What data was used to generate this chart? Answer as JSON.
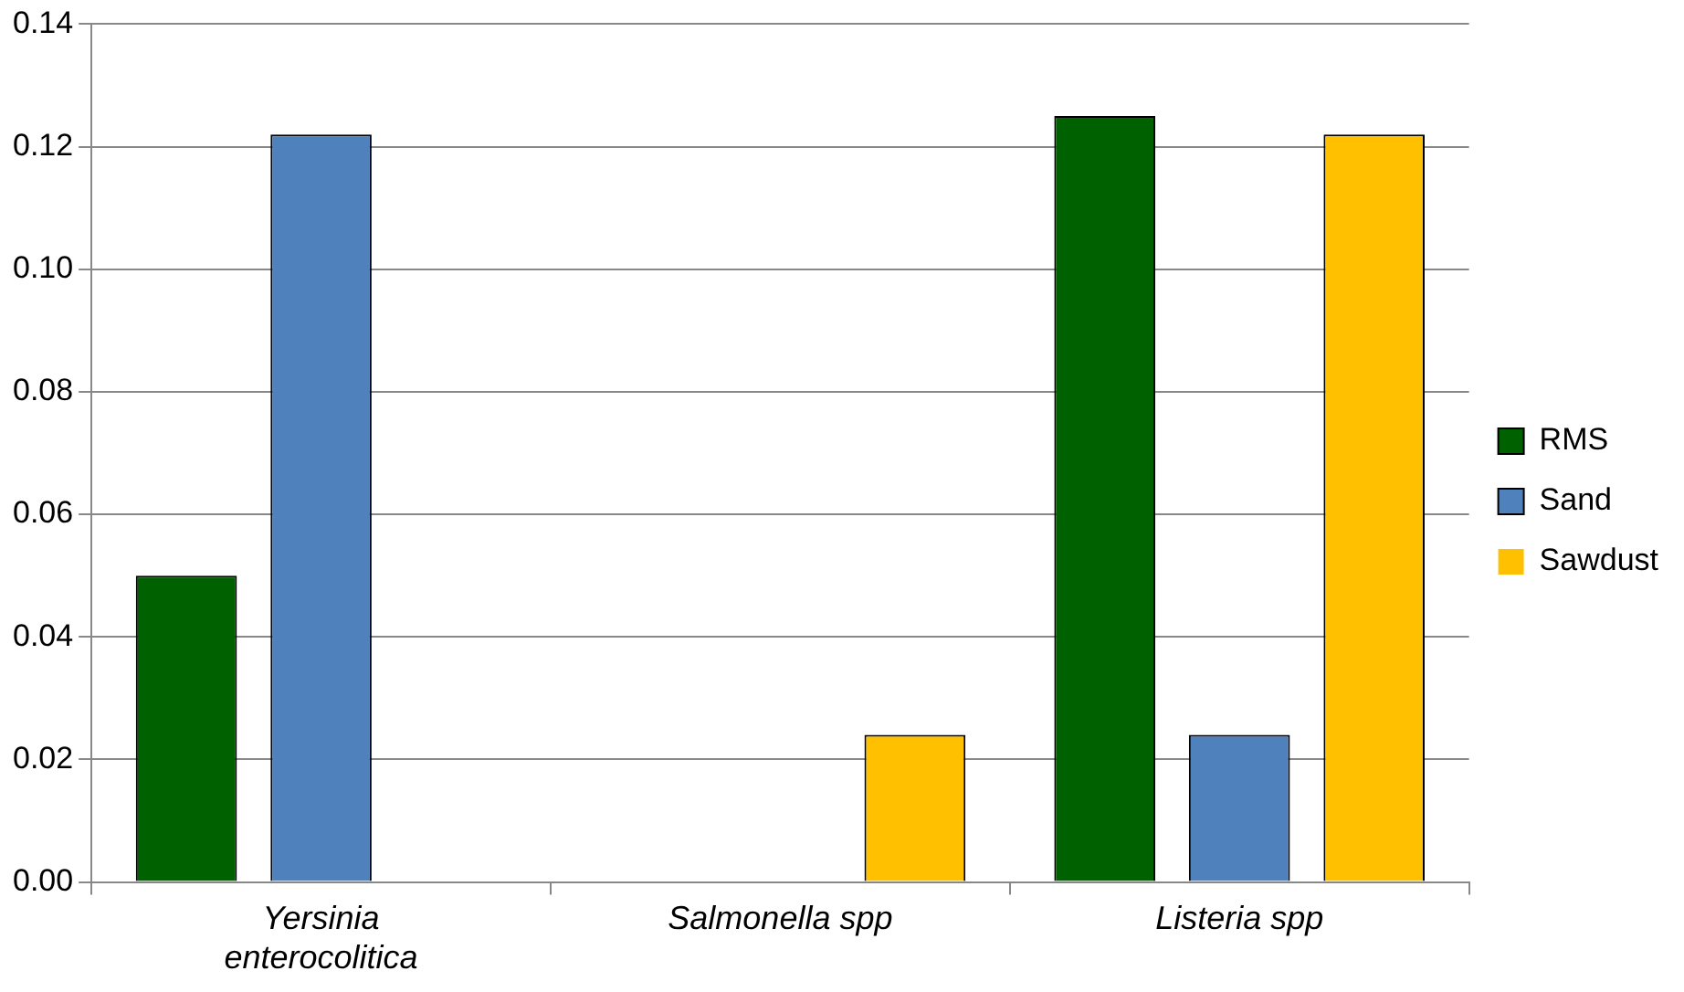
{
  "chart_data": {
    "type": "bar",
    "categories": [
      "Yersinia enterocolitica",
      "Salmonella spp",
      "Listeria spp"
    ],
    "series": [
      {
        "name": "RMS",
        "color": "#006100",
        "values": [
          0.05,
          0,
          0.125
        ]
      },
      {
        "name": "Sand",
        "color": "#4f81bd",
        "values": [
          0.122,
          0,
          0.024
        ]
      },
      {
        "name": "Sawdust",
        "color": "#ffc000",
        "values": [
          0,
          0.024,
          0.122
        ]
      }
    ],
    "ylim": [
      0,
      0.14
    ],
    "yticks": [
      {
        "value": 0,
        "label": "0.00"
      },
      {
        "value": 0.02,
        "label": "0.02"
      },
      {
        "value": 0.04,
        "label": "0.04"
      },
      {
        "value": 0.06,
        "label": "0.06"
      },
      {
        "value": 0.08,
        "label": "0.08"
      },
      {
        "value": 0.1,
        "label": "0.10"
      },
      {
        "value": 0.12,
        "label": "0.12"
      },
      {
        "value": 0.14,
        "label": "0.14"
      }
    ],
    "grid": "y",
    "legend": "right"
  }
}
